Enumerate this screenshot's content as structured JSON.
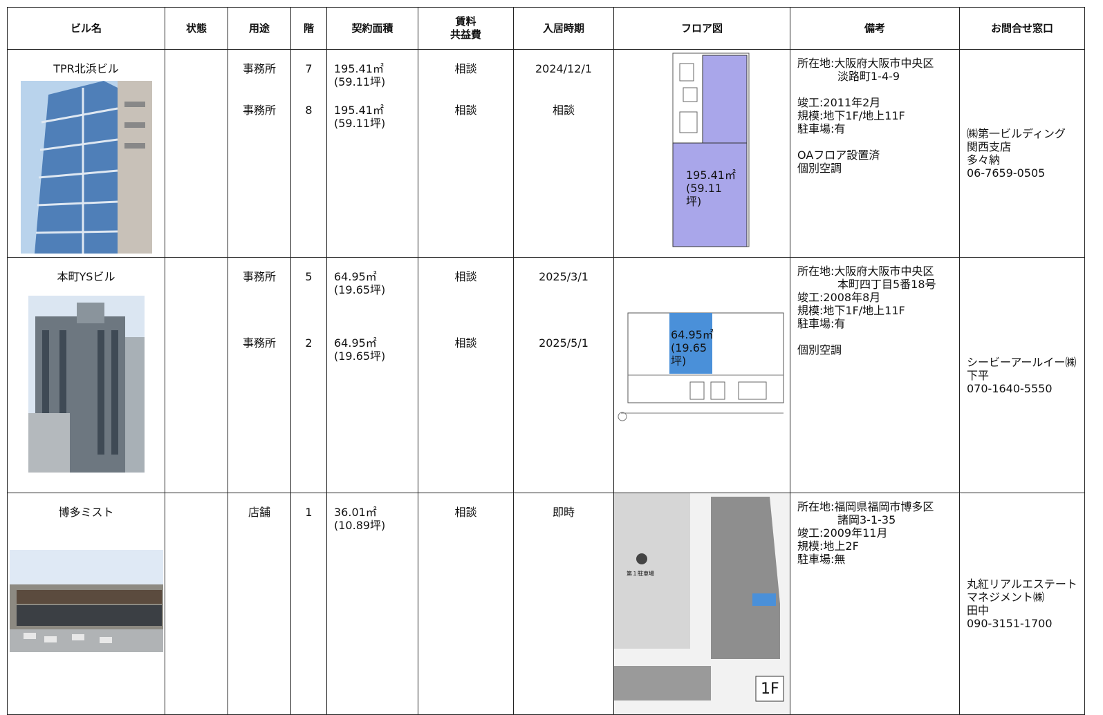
{
  "header": {
    "columns": [
      "ビル名",
      "状態",
      "用途",
      "階",
      "契約面積",
      [
        "賃料",
        "共益費"
      ],
      "入居時期",
      "フロア図",
      "備考",
      "お問合せ窓口"
    ]
  },
  "table": {
    "rows": [
      {
        "name": "TPR北浜ビル",
        "units": [
          {
            "use": "事務所",
            "floor": "7",
            "area": "195.41㎡",
            "area_tsubo": "(59.11坪)",
            "rent": "相談",
            "move_in": "2024/12/1"
          },
          {
            "use": "事務所",
            "floor": "8",
            "area": "195.41㎡",
            "area_tsubo": "(59.11坪)",
            "rent": "相談",
            "move_in": "相談"
          }
        ],
        "plan_labels": [
          "195.41㎡",
          "(59.11",
          "坪)"
        ],
        "notes": [
          [
            "所在地:大阪府大阪市中央区",
            "淡路町1-4-9"
          ],
          [
            "竣工:2011年2月",
            "規模:地下1F/地上11F",
            "駐車場:有"
          ],
          [
            "OAフロア設置済",
            "個別空調"
          ]
        ],
        "contact": [
          "㈱第一ビルディング",
          "関西支店",
          "多々納",
          "06-7659-0505"
        ]
      },
      {
        "name": "本町YSビル",
        "units": [
          {
            "use": "事務所",
            "floor": "5",
            "area": "64.95㎡",
            "area_tsubo": "(19.65坪)",
            "rent": "相談",
            "move_in": "2025/3/1"
          },
          {
            "use": "事務所",
            "floor": "2",
            "area": "64.95㎡",
            "area_tsubo": "(19.65坪)",
            "rent": "相談",
            "move_in": "2025/5/1"
          }
        ],
        "plan_labels": [
          "64.95㎡",
          "(19.65",
          "坪)"
        ],
        "notes": [
          [
            "所在地:大阪府大阪市中央区",
            "本町四丁目5番18号",
            "竣工:2008年8月",
            "規模:地下1F/地上11F",
            "駐車場:有"
          ],
          [
            "個別空調"
          ]
        ],
        "contact": [
          "シービーアールイー㈱",
          "下平",
          "070-1640-5550"
        ]
      },
      {
        "name": "博多ミスト",
        "units": [
          {
            "use": "店舗",
            "floor": "1",
            "area": "36.01㎡",
            "area_tsubo": "(10.89坪)",
            "rent": "相談",
            "move_in": "即時"
          }
        ],
        "plan_labels": [
          "第１駐車場",
          "1F"
        ],
        "notes": [
          [
            "所在地:福岡県福岡市博多区",
            "諸岡3-1-35",
            "竣工:2009年11月",
            "規模:地上2F",
            "駐車場:無"
          ]
        ],
        "contact": [
          "丸紅リアルエステートマネジメント㈱",
          "田中",
          "090-3151-1700"
        ]
      }
    ]
  }
}
